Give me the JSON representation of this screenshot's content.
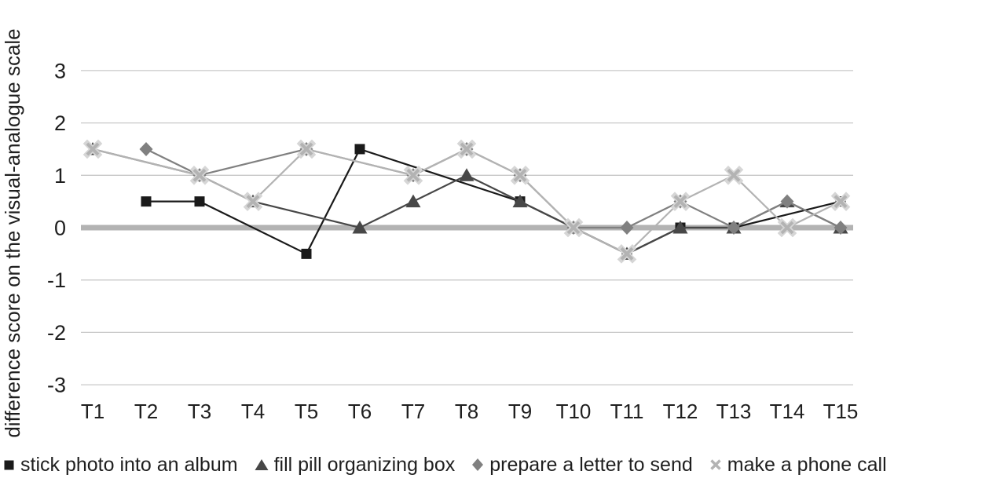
{
  "chart_data": {
    "type": "line",
    "title": "",
    "xlabel": "",
    "ylabel": "difference score on the visual-analogue scale",
    "categories": [
      "T1",
      "T2",
      "T3",
      "T4",
      "T5",
      "T6",
      "T7",
      "T8",
      "T9",
      "T10",
      "T11",
      "T12",
      "T13",
      "T14",
      "T15"
    ],
    "yticks": [
      3,
      2,
      1,
      0,
      -1,
      -2,
      -3
    ],
    "ylim": [
      -3.5,
      3.5
    ],
    "grid": true,
    "zero_line_emphasized": true,
    "legend_position": "bottom",
    "connect_gaps": true,
    "series": [
      {
        "name": "stick photo into an album",
        "marker": "square",
        "color": "#1a1a1a",
        "values": [
          null,
          0.5,
          0.5,
          null,
          -0.5,
          1.5,
          null,
          null,
          0.5,
          0,
          -0.5,
          0,
          0,
          null,
          0.5
        ]
      },
      {
        "name": "fill pill organizing box",
        "marker": "triangle",
        "color": "#474747",
        "values": [
          1.5,
          null,
          1,
          0.5,
          null,
          0,
          0.5,
          1,
          0.5,
          0,
          -0.5,
          0,
          0,
          0.5,
          0
        ]
      },
      {
        "name": "prepare a letter to send",
        "marker": "diamond",
        "color": "#808080",
        "values": [
          null,
          1.5,
          1,
          null,
          1.5,
          null,
          1,
          1.5,
          1,
          0,
          0,
          0.5,
          0,
          0.5,
          0
        ]
      },
      {
        "name": "make a phone call",
        "marker": "x",
        "color": "#b3b3b3",
        "values": [
          1.5,
          null,
          1,
          0.5,
          1.5,
          null,
          1,
          1.5,
          1,
          0,
          -0.5,
          0.5,
          1,
          0,
          0.5
        ]
      }
    ],
    "style": {
      "grid_color": "#c8c8c8",
      "zero_line_color": "#b3b3b3",
      "text_color": "#1f1f1f",
      "x_halo_color": "#d6d6d6",
      "background": "#ffffff"
    }
  }
}
